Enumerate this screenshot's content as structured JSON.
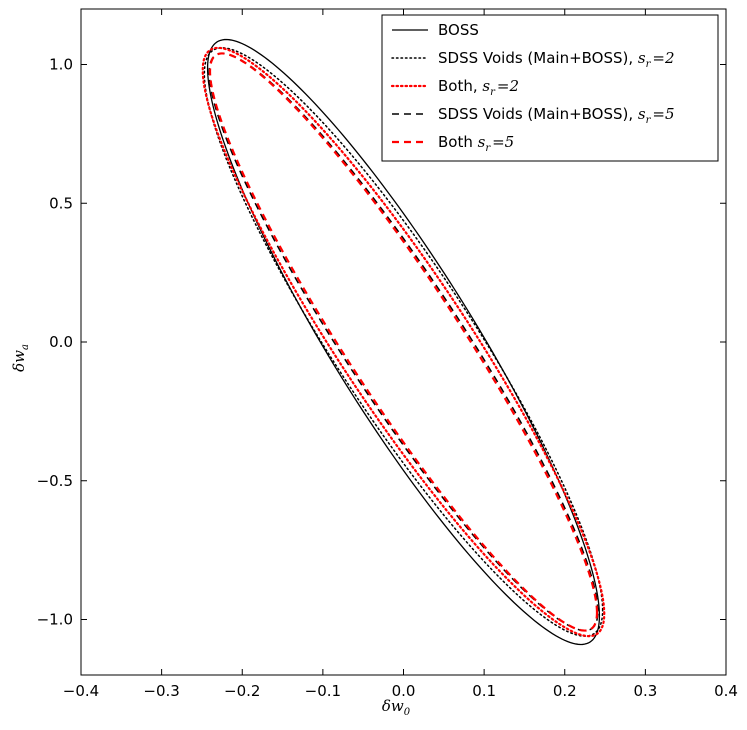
{
  "chart_data": {
    "type": "line",
    "title": "",
    "xlabel": "δw",
    "xlabel_sub": "0",
    "ylabel": "δw",
    "ylabel_sub": "a",
    "xlim": [
      -0.4,
      0.4
    ],
    "ylim": [
      -1.2,
      1.2
    ],
    "xticks": [
      -0.4,
      -0.3,
      -0.2,
      -0.1,
      0.0,
      0.1,
      0.2,
      0.3,
      0.4
    ],
    "xtick_labels": [
      "−0.4",
      "−0.3",
      "−0.2",
      "−0.1",
      "0.0",
      "0.1",
      "0.2",
      "0.3",
      "0.4"
    ],
    "yticks": [
      1.0,
      0.5,
      0.0,
      -0.5,
      -1.0
    ],
    "ytick_labels": [
      "1.0",
      "0.5",
      "0.0",
      "−0.5",
      "−1.0"
    ],
    "grid": false,
    "legend_position": "top-right",
    "series": [
      {
        "name": "BOSS",
        "legend_text": "BOSS",
        "legend_math": "",
        "legend_sub": "",
        "legend_tail": "",
        "color": "#000000",
        "dash": "solid",
        "ellipse": {
          "center": [
            0.0,
            0.0
          ],
          "top_point": [
            -0.22,
            1.09
          ],
          "right_extent": 0.243,
          "bottom_point": [
            0.22,
            -1.09
          ],
          "left_extent": -0.243
        }
      },
      {
        "name": "SDSS Voids (Main+BOSS), s_r=2",
        "legend_text": "SDSS Voids (Main+BOSS), ",
        "legend_math": "s",
        "legend_sub": "r",
        "legend_tail": "=2",
        "color": "#000000",
        "dash": "dotted",
        "ellipse": {
          "center": [
            0.0,
            0.0
          ],
          "top_point": [
            -0.225,
            1.06
          ],
          "right_extent": 0.247,
          "bottom_point": [
            0.225,
            -1.06
          ],
          "left_extent": -0.247
        }
      },
      {
        "name": "Both, s_r=2",
        "legend_text": "Both, ",
        "legend_math": "s",
        "legend_sub": "r",
        "legend_tail": "=2",
        "color": "#ff0000",
        "dash": "dotted",
        "ellipse": {
          "center": [
            0.0,
            0.0
          ],
          "top_point": [
            -0.23,
            1.06
          ],
          "right_extent": 0.249,
          "bottom_point": [
            0.23,
            -1.06
          ],
          "left_extent": -0.249
        }
      },
      {
        "name": "SDSS Voids (Main+BOSS), s_r=5",
        "legend_text": "SDSS Voids (Main+BOSS), ",
        "legend_math": "s",
        "legend_sub": "r",
        "legend_tail": "=5",
        "color": "#000000",
        "dash": "dashed",
        "ellipse": {
          "center": [
            0.0,
            0.0
          ],
          "top_point": [
            -0.225,
            1.04
          ],
          "right_extent": 0.241,
          "bottom_point": [
            0.225,
            -1.04
          ],
          "left_extent": -0.241
        }
      },
      {
        "name": "Both s_r=5",
        "legend_text": "Both ",
        "legend_math": "s",
        "legend_sub": "r",
        "legend_tail": "=5",
        "color": "#ff0000",
        "dash": "dashed",
        "ellipse": {
          "center": [
            0.0,
            0.0
          ],
          "top_point": [
            -0.225,
            1.04
          ],
          "right_extent": 0.24,
          "bottom_point": [
            0.225,
            -1.04
          ],
          "left_extent": -0.24
        }
      }
    ]
  }
}
